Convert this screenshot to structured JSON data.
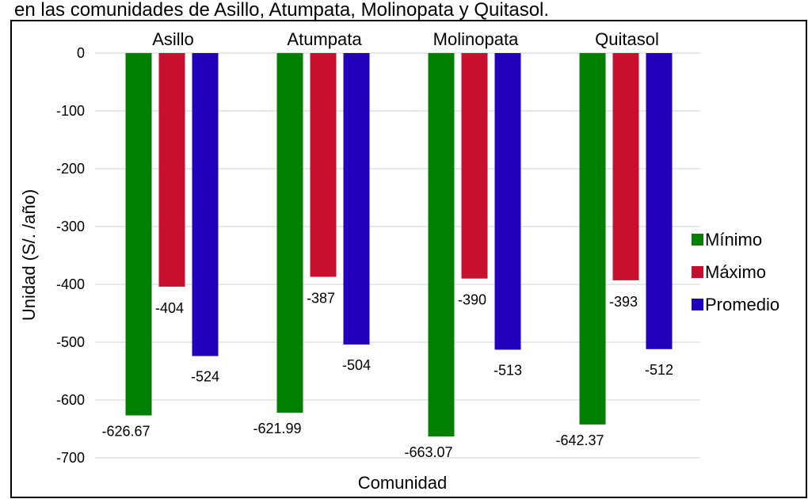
{
  "chart_data": {
    "type": "bar",
    "title": "en las comunidades de Asillo, Atumpata, Molinopata y Quitasol.",
    "xlabel": "Comunidad",
    "ylabel": "Unidad (S/. /año)",
    "ylim": [
      -700,
      0
    ],
    "yticks": [
      0,
      -100,
      -200,
      -300,
      -400,
      -500,
      -600,
      -700
    ],
    "grid": true,
    "legend_position": "right",
    "categories": [
      "Asillo",
      "Atumpata",
      "Molinopata",
      "Quitasol"
    ],
    "series": [
      {
        "name": "Mínimo",
        "color": "#008000",
        "values": [
          -626.67,
          -621.99,
          -663.07,
          -642.37
        ],
        "labels": [
          "-626.67",
          "-621.99",
          "-663.07",
          "-642.37"
        ]
      },
      {
        "name": "Máximo",
        "color": "#C8102E",
        "values": [
          -404,
          -387,
          -390,
          -393
        ],
        "labels": [
          "-404",
          "-387",
          "-390",
          "-393"
        ]
      },
      {
        "name": "Promedio",
        "color": "#2200BB",
        "values": [
          -524,
          -504,
          -513,
          -512
        ],
        "labels": [
          "-524",
          "-504",
          "-513",
          "-512"
        ]
      }
    ]
  }
}
